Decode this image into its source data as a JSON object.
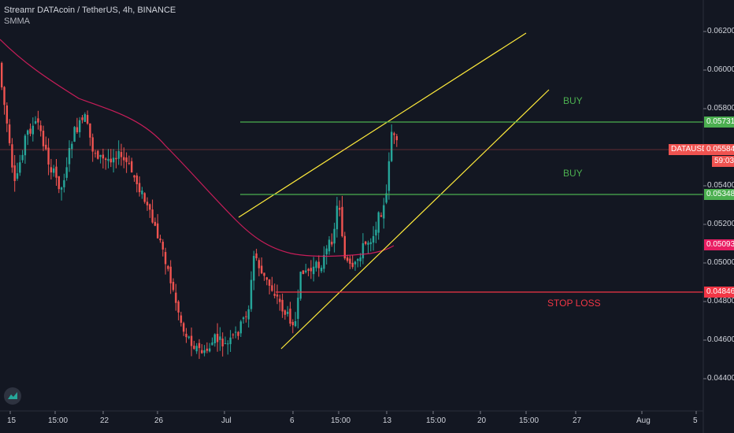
{
  "header": {
    "symbol_line": "Streamr DATAcoin / TetherUS, 4h, BINANCE",
    "indicator": "SMMA"
  },
  "price_axis": [
    "0.06200",
    "0.06000",
    "0.05800",
    "0.05400",
    "0.05200",
    "0.05000",
    "0.04800",
    "0.04600",
    "0.04400"
  ],
  "price_tags": {
    "buy_high": "0.05731",
    "current": "0.05584",
    "ticker": "DATAUSDT",
    "countdown": "59:03",
    "buy_low": "0.05348",
    "smma": "0.05093",
    "stop_loss": "0.04846"
  },
  "time_axis": [
    "15",
    "15:00",
    "22",
    "26",
    "Jul",
    "6",
    "15:00",
    "13",
    "15:00",
    "20",
    "15:00",
    "27",
    "Aug",
    "5"
  ],
  "annotations": {
    "buy_upper": "BUY",
    "buy_lower": "BUY",
    "stop_loss": "STOP LOSS"
  },
  "colors": {
    "background": "#131722",
    "up": "#26a69a",
    "down": "#ef5350",
    "buy_line": "#4caf50",
    "stop_line": "#f23645",
    "channel": "#ffeb3b",
    "smma": "#e91e63",
    "buy_text": "#4caf50",
    "stop_text": "#f23645"
  },
  "icons": {
    "logo": "tradingview-logo-icon"
  }
}
